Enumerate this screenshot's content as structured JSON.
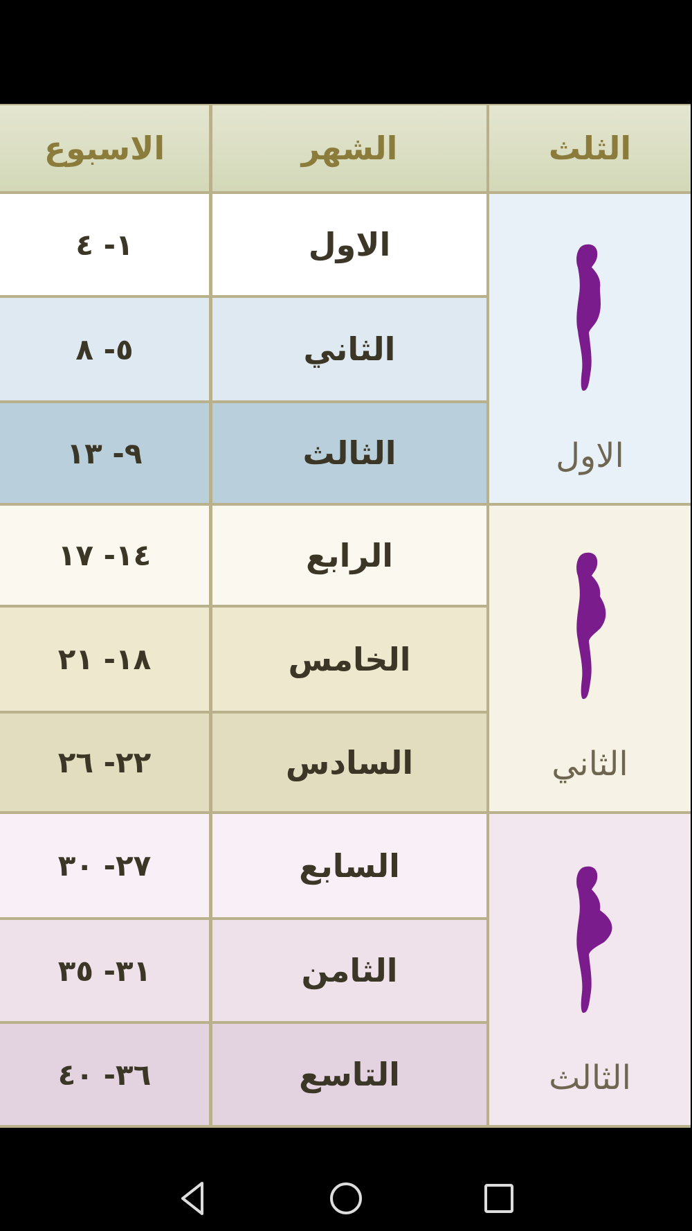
{
  "header": {
    "week": "الاسبوع",
    "month": "الشهر",
    "trimester": "الثلث"
  },
  "rows": [
    {
      "month": "الاول",
      "weeks": "١- ٤"
    },
    {
      "month": "الثاني",
      "weeks": "٥- ٨"
    },
    {
      "month": "الثالث",
      "weeks": "٩- ١٣"
    },
    {
      "month": "الرابع",
      "weeks": "١٤- ١٧"
    },
    {
      "month": "الخامس",
      "weeks": "١٨- ٢١"
    },
    {
      "month": "السادس",
      "weeks": "٢٢- ٢٦"
    },
    {
      "month": "السابع",
      "weeks": "٢٧- ٣٠"
    },
    {
      "month": "الثامن",
      "weeks": "٣١- ٣٥"
    },
    {
      "month": "التاسع",
      "weeks": "٣٦- ٤٠"
    }
  ],
  "trimesters": [
    {
      "label": "الاول",
      "icon": "pregnant-silhouette-small-icon"
    },
    {
      "label": "الثاني",
      "icon": "pregnant-silhouette-medium-icon"
    },
    {
      "label": "الثالث",
      "icon": "pregnant-silhouette-large-icon"
    }
  ],
  "colors": {
    "silhouette": "#7b1c8c",
    "header_text": "#8c7c3c",
    "trimester1": [
      "#ffffff",
      "#dfe9f1",
      "#b9d0dc"
    ],
    "trimester2": [
      "#faf8ef",
      "#eee8cf",
      "#e3ddc0"
    ],
    "trimester3": [
      "#f8f0f6",
      "#eee1ea",
      "#e3d2df"
    ]
  },
  "navbar": {
    "back": "back-icon",
    "home": "home-icon",
    "recents": "recents-icon"
  }
}
